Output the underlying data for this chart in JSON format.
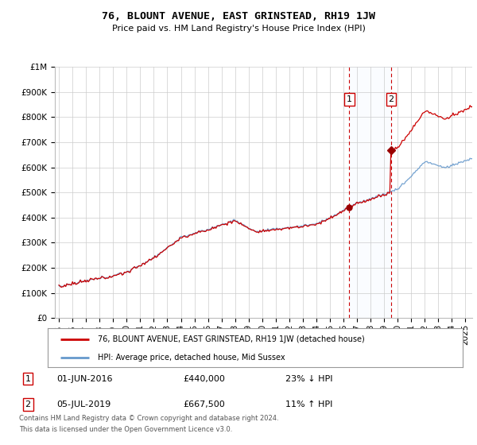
{
  "title": "76, BLOUNT AVENUE, EAST GRINSTEAD, RH19 1JW",
  "subtitle": "Price paid vs. HM Land Registry's House Price Index (HPI)",
  "legend_line1": "76, BLOUNT AVENUE, EAST GRINSTEAD, RH19 1JW (detached house)",
  "legend_line2": "HPI: Average price, detached house, Mid Sussex",
  "transaction1_date": "01-JUN-2016",
  "transaction1_price": "£440,000",
  "transaction1_hpi": "23% ↓ HPI",
  "transaction1_year": 2016.42,
  "transaction1_value": 440000,
  "transaction2_date": "05-JUL-2019",
  "transaction2_price": "£667,500",
  "transaction2_hpi": "11% ↑ HPI",
  "transaction2_year": 2019.51,
  "transaction2_value": 667500,
  "footnote1": "Contains HM Land Registry data © Crown copyright and database right 2024.",
  "footnote2": "This data is licensed under the Open Government Licence v3.0.",
  "red_color": "#cc0000",
  "blue_color": "#6699cc",
  "blue_fill": "#ddeeff",
  "background_color": "#ffffff",
  "grid_color": "#cccccc",
  "ylim": [
    0,
    1000000
  ],
  "xlim_start": 1994.7,
  "xlim_end": 2025.5
}
